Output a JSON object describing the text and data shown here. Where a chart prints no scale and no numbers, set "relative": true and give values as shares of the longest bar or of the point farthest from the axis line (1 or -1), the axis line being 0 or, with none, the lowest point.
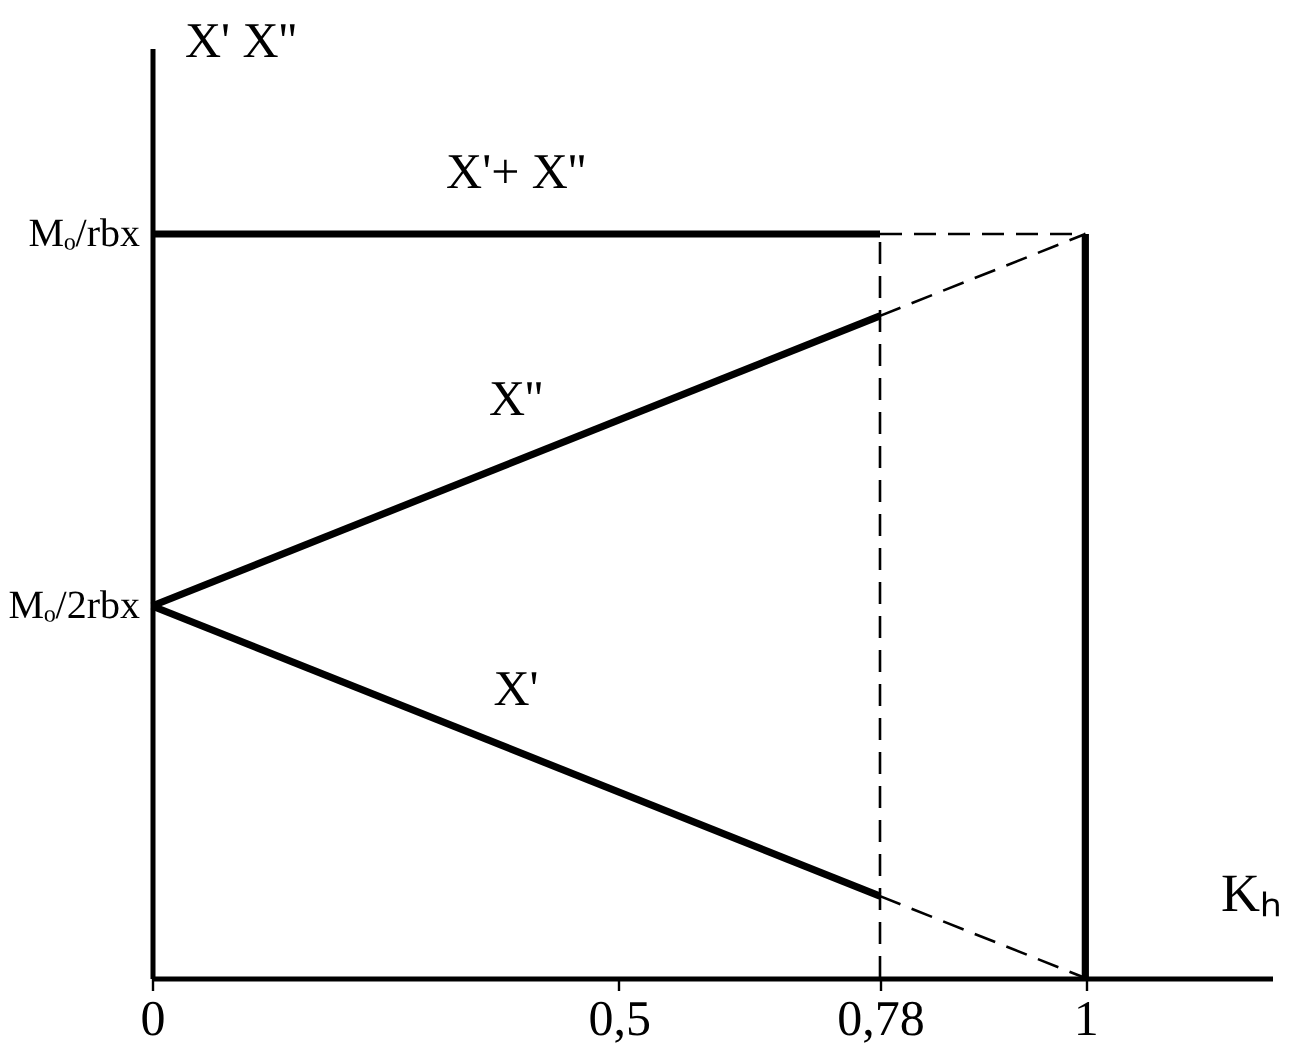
{
  "chart_data": {
    "type": "line",
    "relative": true,
    "xlabel": "Kₕ",
    "ylabel": "X'  X''",
    "xlim": [
      0,
      1.2
    ],
    "xticks": [
      0,
      {
        "value": 0.5,
        "label": "0,5"
      },
      {
        "value": 0.78,
        "label": "0,78"
      },
      1
    ],
    "annotations": [
      {
        "text": "Mₒ/rbx",
        "x": 0,
        "y": 1
      },
      {
        "text": "Mₒ/2rbx",
        "x": 0,
        "y": 0.5
      }
    ],
    "grid": false,
    "series": [
      {
        "name": "X'+ X''",
        "color": "#000000",
        "x": [
          0,
          0.78
        ],
        "values": [
          1,
          1
        ]
      },
      {
        "color": "#000000",
        "line_style": "dashed",
        "x": [
          0.78,
          1
        ],
        "values": [
          1,
          1
        ]
      },
      {
        "name": "X''",
        "color": "#000000",
        "x": [
          0,
          0.78
        ],
        "values": [
          0.5,
          0.89
        ]
      },
      {
        "color": "#000000",
        "line_style": "dashed",
        "x": [
          0.78,
          1
        ],
        "values": [
          0.89,
          1
        ]
      },
      {
        "name": "X'",
        "color": "#000000",
        "x": [
          0,
          0.78
        ],
        "values": [
          0.5,
          0.11
        ]
      },
      {
        "color": "#000000",
        "line_style": "dashed",
        "x": [
          0.78,
          1
        ],
        "values": [
          0.11,
          0
        ]
      },
      {
        "color": "#000000",
        "line_style": "dashed",
        "x": [
          0.78,
          0.78
        ],
        "values": [
          0,
          1
        ]
      },
      {
        "color": "#000000",
        "x": [
          1,
          1
        ],
        "values": [
          0,
          1
        ]
      }
    ]
  }
}
